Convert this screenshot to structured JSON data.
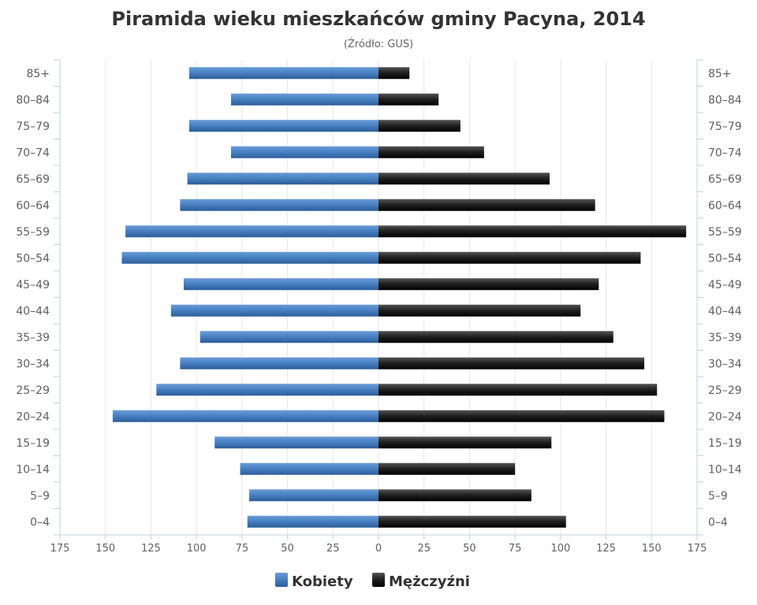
{
  "chart_data": {
    "type": "bar",
    "orientation": "horizontal",
    "layout": "population-pyramid",
    "title": "Piramida wieku mieszkańców gminy Pacyna, 2014",
    "subtitle": "(Źródło: GUS)",
    "categories": [
      "85+",
      "80–84",
      "75–79",
      "70–74",
      "65–69",
      "60–64",
      "55–59",
      "50–54",
      "45–49",
      "40–44",
      "35–39",
      "30–34",
      "25–29",
      "20–24",
      "15–19",
      "10–14",
      "5–9",
      "0–4"
    ],
    "series": [
      {
        "name": "Kobiety",
        "color": "#4572A7",
        "side": "left",
        "values": [
          104,
          81,
          104,
          81,
          105,
          109,
          139,
          141,
          107,
          114,
          98,
          109,
          122,
          146,
          90,
          76,
          71,
          72
        ]
      },
      {
        "name": "Mężczyźni",
        "color": "#1a1a1a",
        "side": "right",
        "values": [
          17,
          33,
          45,
          58,
          94,
          119,
          169,
          144,
          121,
          111,
          129,
          146,
          153,
          157,
          95,
          75,
          84,
          103
        ]
      }
    ],
    "xticks": [
      175,
      150,
      125,
      100,
      75,
      50,
      25,
      0,
      25,
      50,
      75,
      100,
      125,
      150,
      175
    ],
    "xlim": [
      -175,
      175
    ],
    "grid": true,
    "legend": "bottom-center"
  }
}
